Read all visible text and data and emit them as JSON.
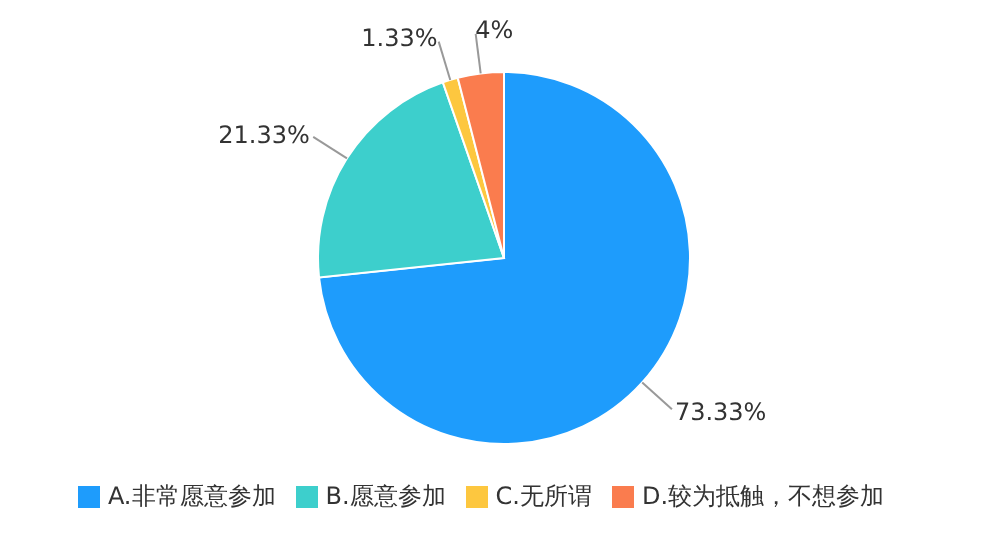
{
  "chart_data": {
    "type": "pie",
    "categories": [
      "A.非常愿意参加",
      "B.愿意参加",
      "C.无所谓",
      "D.较为抵触，不想参加"
    ],
    "values": [
      73.33,
      21.33,
      1.33,
      4
    ],
    "colors": [
      "#1e9cfc",
      "#3dcfcc",
      "#fdc73f",
      "#fa7c4e"
    ],
    "value_labels": [
      "73.33%",
      "21.33%",
      "1.33%",
      "4%"
    ],
    "legend": "bottom"
  }
}
